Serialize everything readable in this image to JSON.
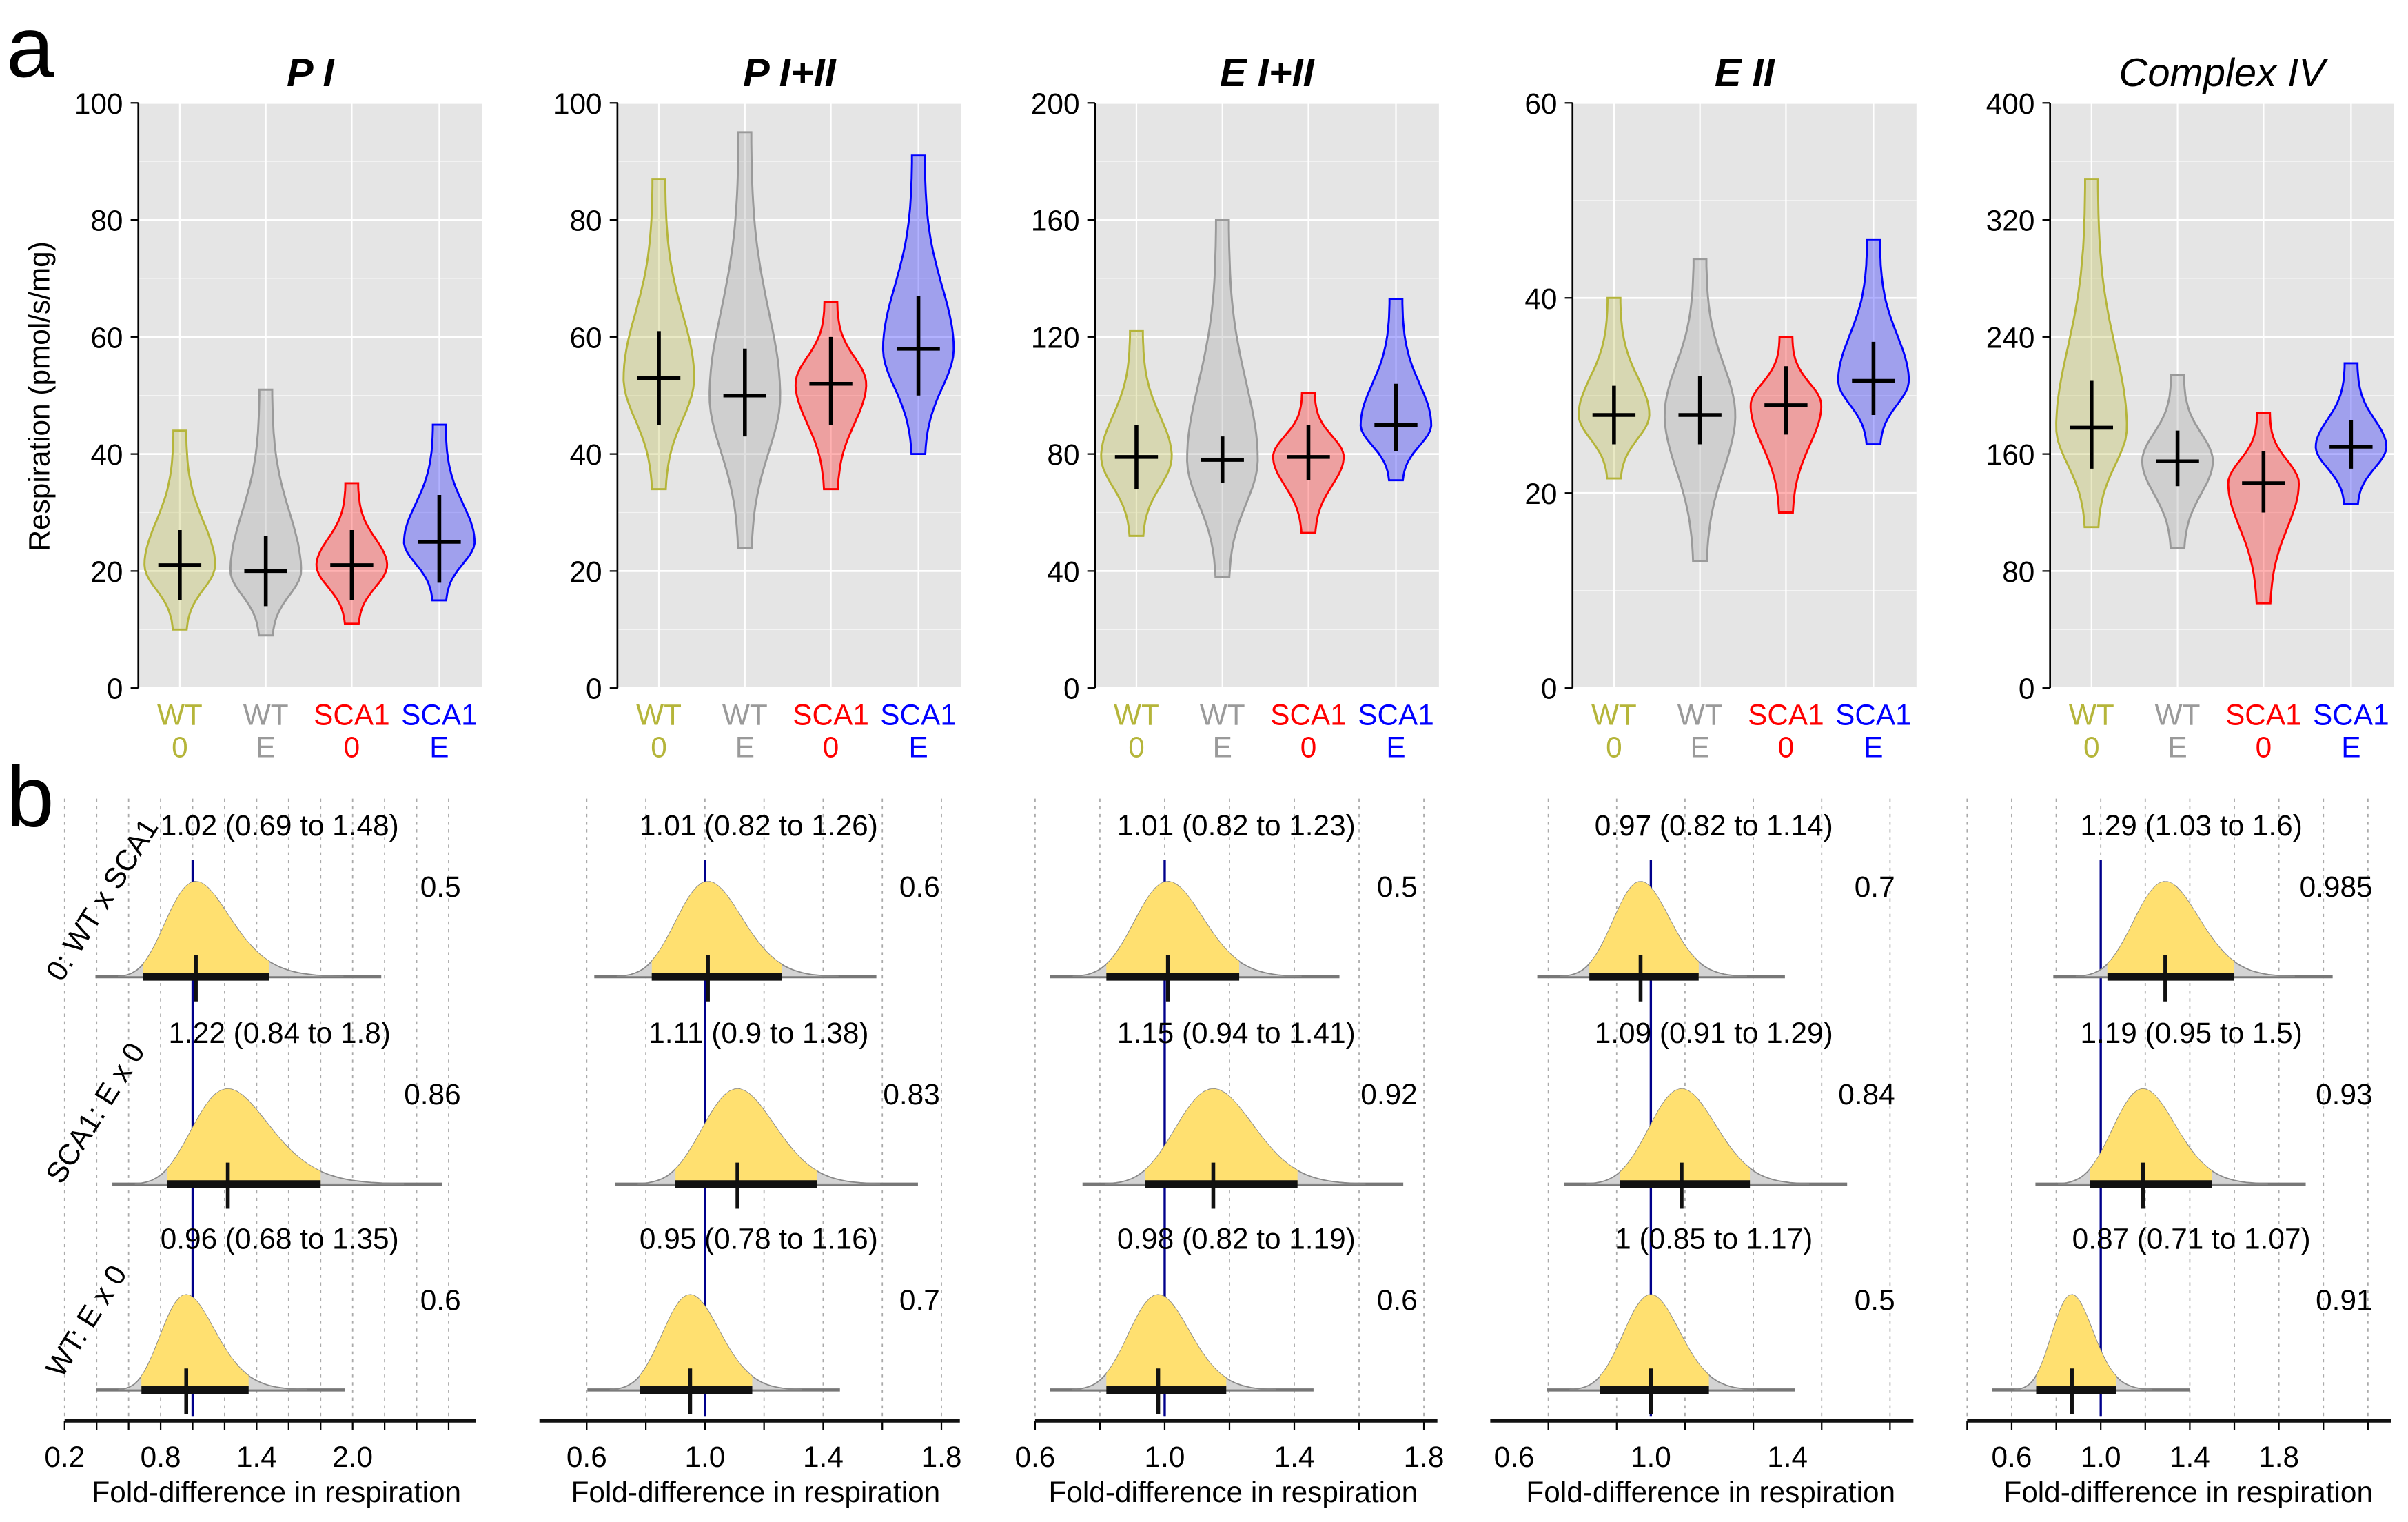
{
  "figure_labels": {
    "a": "a",
    "b": "b"
  },
  "ylabel": "Respiration (pmol/s/mg)",
  "xlabel": "Fold-difference in respiration",
  "group_labels": [
    {
      "line1": "WT",
      "line2": "0",
      "color": "#b5b53a"
    },
    {
      "line1": "WT",
      "line2": "E",
      "color": "#9a9a9a"
    },
    {
      "line1": "SCA1",
      "line2": "0",
      "color": "#ff0000"
    },
    {
      "line1": "SCA1",
      "line2": "E",
      "color": "#0000ff"
    }
  ],
  "row_labels": [
    "0: WT x SCA1",
    "SCA1: E x 0",
    "WT: E x 0"
  ],
  "colors": {
    "panel_bg": "#e5e5e5",
    "density_fill": "#ffe070",
    "density_tail": "#d3d3d3",
    "ci_label": "#8b2500",
    "prob": "#cc33cc",
    "ref_line": "#00008b"
  },
  "chart_data": [
    {
      "type": "violin",
      "title": "P I",
      "ylim": [
        0,
        100
      ],
      "yticks": [
        0,
        20,
        40,
        60,
        80,
        100
      ],
      "groups": [
        {
          "mean": 21,
          "ci": [
            15,
            27
          ],
          "range": [
            10,
            44
          ]
        },
        {
          "mean": 20,
          "ci": [
            14,
            26
          ],
          "range": [
            9,
            51
          ]
        },
        {
          "mean": 21,
          "ci": [
            15,
            27
          ],
          "range": [
            11,
            35
          ]
        },
        {
          "mean": 25,
          "ci": [
            18,
            33
          ],
          "range": [
            15,
            45
          ]
        }
      ],
      "contrast_axis": {
        "ticks": [
          0.2,
          0.8,
          1.4,
          2.0
        ],
        "xlim": [
          0.2,
          2.8
        ]
      },
      "contrasts": [
        {
          "label": "1.02 (0.69 to 1.48)",
          "est": 1.02,
          "lo": 0.69,
          "hi": 1.48,
          "prob": "0.5"
        },
        {
          "label": "1.22 (0.84 to 1.8)",
          "est": 1.22,
          "lo": 0.84,
          "hi": 1.8,
          "prob": "0.86"
        },
        {
          "label": "0.96 (0.68 to 1.35)",
          "est": 0.96,
          "lo": 0.68,
          "hi": 1.35,
          "prob": "0.6"
        }
      ]
    },
    {
      "type": "violin",
      "title": "P I+II",
      "ylim": [
        0,
        100
      ],
      "yticks": [
        0,
        20,
        40,
        60,
        80,
        100
      ],
      "groups": [
        {
          "mean": 53,
          "ci": [
            45,
            61
          ],
          "range": [
            34,
            87
          ]
        },
        {
          "mean": 50,
          "ci": [
            43,
            58
          ],
          "range": [
            24,
            95
          ]
        },
        {
          "mean": 52,
          "ci": [
            45,
            60
          ],
          "range": [
            34,
            66
          ]
        },
        {
          "mean": 58,
          "ci": [
            50,
            67
          ],
          "range": [
            40,
            91
          ]
        }
      ],
      "contrast_axis": {
        "ticks": [
          0.6,
          1.0,
          1.4,
          1.8
        ],
        "xlim": [
          0.44,
          1.86
        ]
      },
      "contrasts": [
        {
          "label": "1.01 (0.82 to 1.26)",
          "est": 1.01,
          "lo": 0.82,
          "hi": 1.26,
          "prob": "0.6"
        },
        {
          "label": "1.11 (0.9 to 1.38)",
          "est": 1.11,
          "lo": 0.9,
          "hi": 1.38,
          "prob": "0.83"
        },
        {
          "label": "0.95 (0.78 to 1.16)",
          "est": 0.95,
          "lo": 0.78,
          "hi": 1.16,
          "prob": "0.7"
        }
      ]
    },
    {
      "type": "violin",
      "title": "E I+II",
      "ylim": [
        0,
        200
      ],
      "yticks": [
        0,
        40,
        80,
        120,
        160,
        200
      ],
      "groups": [
        {
          "mean": 79,
          "ci": [
            68,
            90
          ],
          "range": [
            52,
            122
          ]
        },
        {
          "mean": 78,
          "ci": [
            70,
            86
          ],
          "range": [
            38,
            160
          ]
        },
        {
          "mean": 79,
          "ci": [
            71,
            90
          ],
          "range": [
            53,
            101
          ]
        },
        {
          "mean": 90,
          "ci": [
            81,
            104
          ],
          "range": [
            71,
            133
          ]
        }
      ],
      "contrast_axis": {
        "ticks": [
          0.6,
          1.0,
          1.4,
          1.8
        ],
        "xlim": [
          0.6,
          1.85
        ]
      },
      "contrasts": [
        {
          "label": "1.01 (0.82 to 1.23)",
          "est": 1.01,
          "lo": 0.82,
          "hi": 1.23,
          "prob": "0.5"
        },
        {
          "label": "1.15 (0.94 to 1.41)",
          "est": 1.15,
          "lo": 0.94,
          "hi": 1.41,
          "prob": "0.92"
        },
        {
          "label": "0.98 (0.82 to 1.19)",
          "est": 0.98,
          "lo": 0.82,
          "hi": 1.19,
          "prob": "0.6"
        }
      ]
    },
    {
      "type": "violin",
      "title": "E II",
      "ylim": [
        0,
        60
      ],
      "yticks": [
        0,
        20,
        40,
        60
      ],
      "groups": [
        {
          "mean": 28,
          "ci": [
            25,
            31
          ],
          "range": [
            21.5,
            40
          ]
        },
        {
          "mean": 28,
          "ci": [
            25,
            32
          ],
          "range": [
            13,
            44
          ]
        },
        {
          "mean": 29,
          "ci": [
            26,
            33
          ],
          "range": [
            18,
            36
          ]
        },
        {
          "mean": 31.5,
          "ci": [
            28,
            35.5
          ],
          "range": [
            25,
            46
          ]
        }
      ],
      "contrast_axis": {
        "ticks": [
          0.6,
          1.0,
          1.4
        ],
        "xlim": [
          0.53,
          1.77
        ]
      },
      "contrasts": [
        {
          "label": "0.97 (0.82 to 1.14)",
          "est": 0.97,
          "lo": 0.82,
          "hi": 1.14,
          "prob": "0.7"
        },
        {
          "label": "1.09 (0.91 to 1.29)",
          "est": 1.09,
          "lo": 0.91,
          "hi": 1.29,
          "prob": "0.84"
        },
        {
          "label": "1 (0.85 to 1.17)",
          "est": 1.0,
          "lo": 0.85,
          "hi": 1.17,
          "prob": "0.5"
        }
      ]
    },
    {
      "type": "violin",
      "title": "Complex IV",
      "ylim": [
        0,
        400
      ],
      "yticks": [
        0,
        80,
        160,
        240,
        320,
        400
      ],
      "groups": [
        {
          "mean": 178,
          "ci": [
            150,
            210
          ],
          "range": [
            110,
            348
          ]
        },
        {
          "mean": 155,
          "ci": [
            138,
            176
          ],
          "range": [
            96,
            214
          ]
        },
        {
          "mean": 140,
          "ci": [
            120,
            162
          ],
          "range": [
            58,
            188
          ]
        },
        {
          "mean": 165,
          "ci": [
            150,
            183
          ],
          "range": [
            126,
            222
          ]
        }
      ],
      "contrast_axis": {
        "ticks": [
          0.6,
          1.0,
          1.4,
          1.8
        ],
        "xlim": [
          0.4,
          2.3
        ]
      },
      "contrasts": [
        {
          "label": "1.29 (1.03 to 1.6)",
          "est": 1.29,
          "lo": 1.03,
          "hi": 1.6,
          "prob": "0.985"
        },
        {
          "label": "1.19 (0.95 to 1.5)",
          "est": 1.19,
          "lo": 0.95,
          "hi": 1.5,
          "prob": "0.93"
        },
        {
          "label": "0.87 (0.71 to 1.07)",
          "est": 0.87,
          "lo": 0.71,
          "hi": 1.07,
          "prob": "0.91"
        }
      ]
    }
  ]
}
